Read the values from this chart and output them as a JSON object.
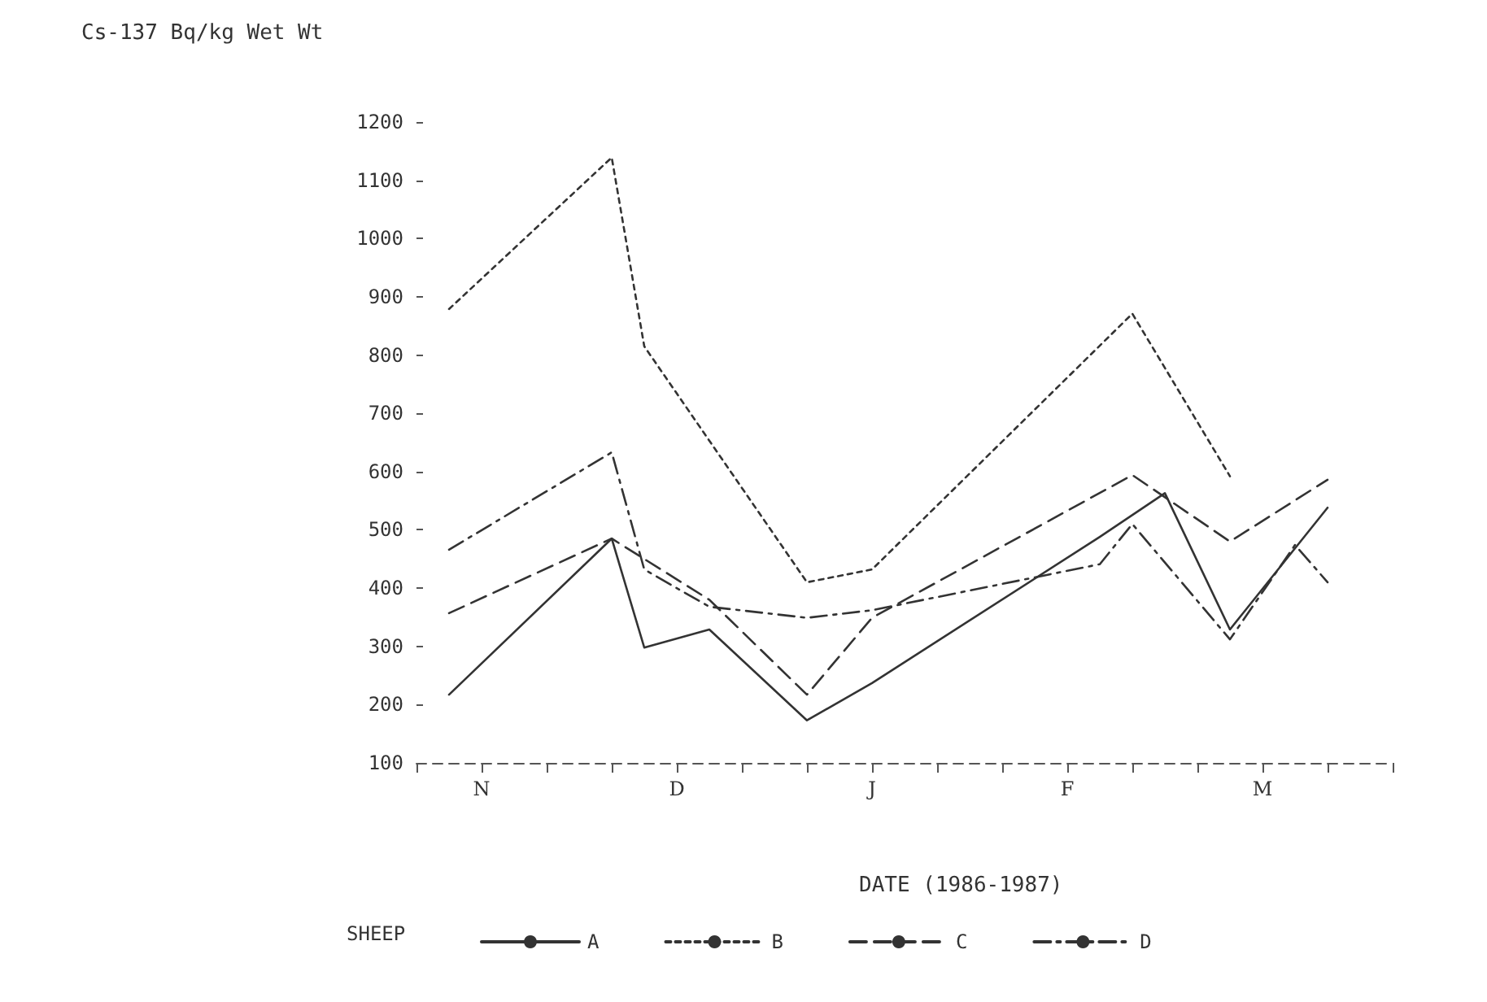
{
  "chart_data": {
    "type": "line",
    "ylabel": "Cs-137 Bq/kg Wet Wt",
    "xlabel": "DATE (1986-1987)",
    "legend_title": "SHEEP",
    "categories": [
      null,
      null,
      "N",
      null,
      null,
      null,
      null,
      null,
      "D",
      null,
      null,
      null,
      null,
      null,
      "J",
      null,
      null,
      null,
      null,
      null,
      "F",
      null,
      null,
      null,
      null,
      null,
      "M",
      null,
      null,
      null,
      null
    ],
    "ylim": [
      100,
      1200
    ],
    "yticks": [
      100,
      200,
      300,
      400,
      500,
      600,
      700,
      800,
      900,
      1000,
      1100,
      1200
    ],
    "grid": false,
    "legend": "bottom",
    "marker": "none",
    "series": [
      {
        "name": "A",
        "color": "#333333",
        "line_style": "solid",
        "values": [
          null,
          217,
          null,
          null,
          null,
          null,
          485,
          298,
          null,
          329,
          null,
          null,
          173,
          null,
          237,
          null,
          null,
          null,
          null,
          null,
          null,
          488,
          null,
          563,
          null,
          329,
          null,
          null,
          538,
          null,
          null
        ]
      },
      {
        "name": "B",
        "color": "#333333",
        "line_style": "dotted",
        "values": [
          null,
          879,
          null,
          null,
          null,
          null,
          1139,
          815,
          null,
          null,
          null,
          null,
          410,
          null,
          432,
          null,
          null,
          null,
          null,
          null,
          null,
          null,
          871,
          null,
          null,
          592,
          null,
          null,
          null,
          null,
          null
        ]
      },
      {
        "name": "C",
        "color": "#333333",
        "line_style": "dashed",
        "values": [
          null,
          357,
          null,
          null,
          null,
          null,
          485,
          null,
          null,
          380,
          null,
          null,
          217,
          null,
          349,
          null,
          null,
          null,
          null,
          null,
          null,
          null,
          594,
          null,
          null,
          480,
          null,
          null,
          586,
          null,
          null
        ]
      },
      {
        "name": "D",
        "color": "#333333",
        "line_style": "dashdot",
        "values": [
          null,
          466,
          null,
          null,
          null,
          null,
          633,
          432,
          null,
          368,
          null,
          null,
          349,
          null,
          362,
          null,
          null,
          null,
          null,
          null,
          null,
          441,
          510,
          null,
          null,
          312,
          null,
          474,
          410,
          null,
          null
        ]
      }
    ]
  }
}
